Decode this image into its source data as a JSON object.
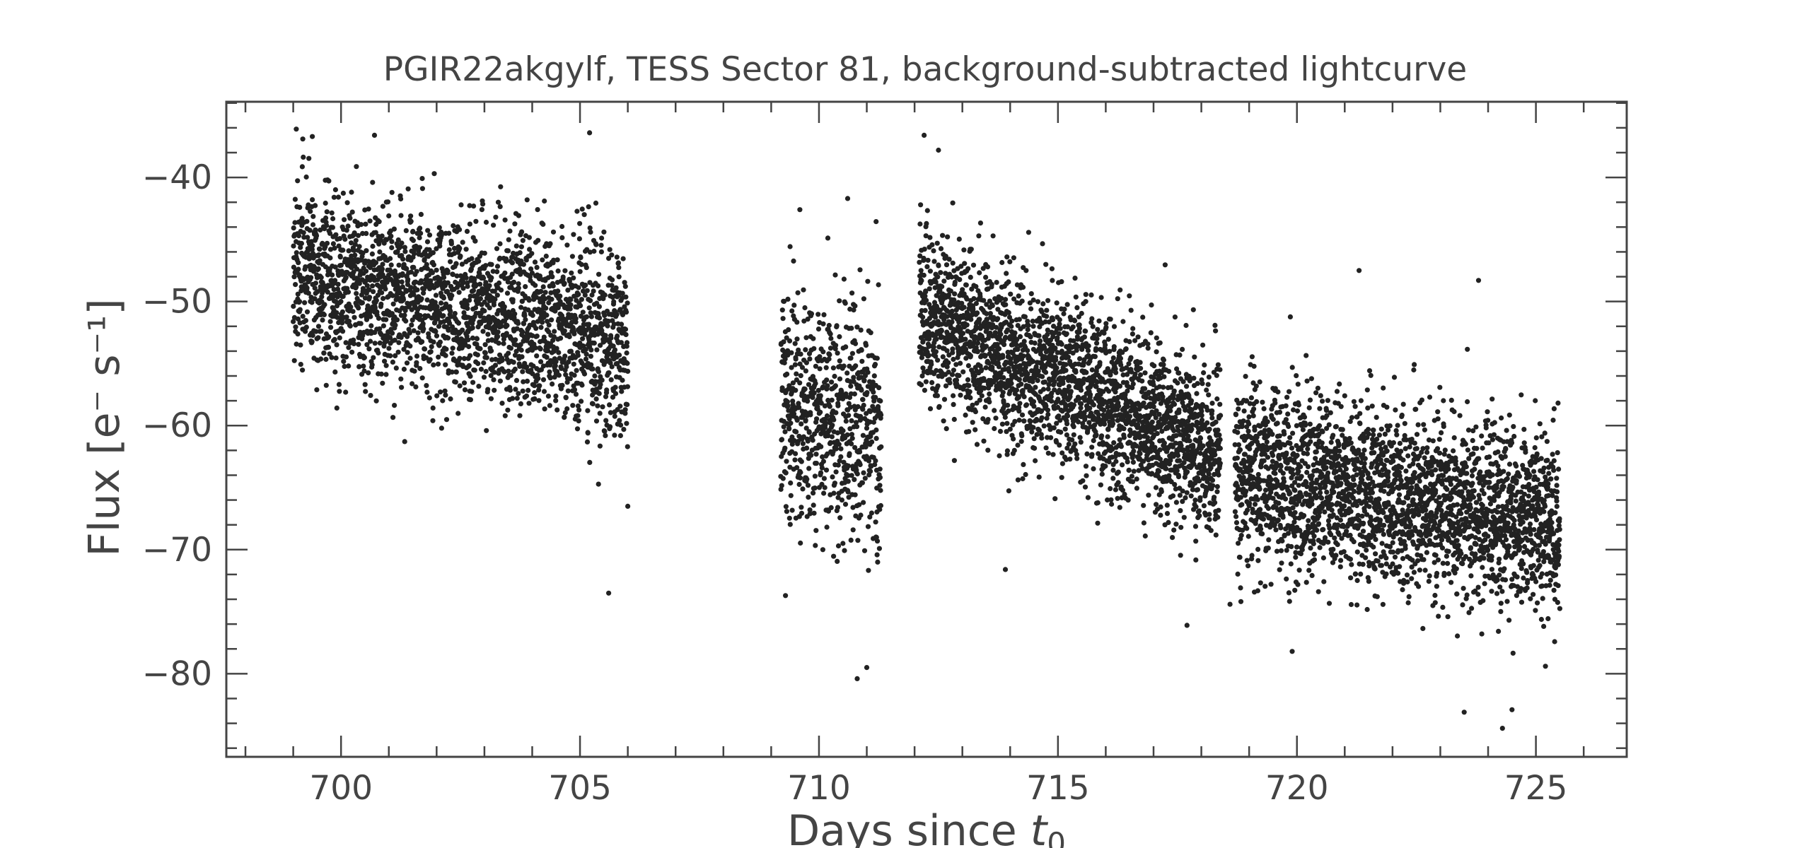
{
  "chart_data": {
    "type": "scatter",
    "title": "PGIR22akgylf, TESS Sector 81, background-subtracted lightcurve",
    "xlabel": "Days since t0",
    "xlabel_main": "Days since ",
    "xlabel_var": "t",
    "xlabel_sub": "0",
    "ylabel": "Flux [e⁻ s⁻¹]",
    "xlim": [
      697.6,
      726.9
    ],
    "ylim": [
      -86.7,
      -33.9
    ],
    "xticks": [
      700,
      705,
      710,
      715,
      720,
      725
    ],
    "xtick_labels": [
      "700",
      "705",
      "710",
      "715",
      "720",
      "725"
    ],
    "yticks": [
      -40,
      -50,
      -60,
      -70,
      -80
    ],
    "ytick_labels": [
      "−40",
      "−50",
      "−60",
      "−70",
      "−80"
    ],
    "grid": false,
    "legend": "none",
    "point_color": "#222222",
    "axis_color": "#444444",
    "segments": [
      {
        "x_start": 699.0,
        "x_end": 706.0,
        "y_start": -47.5,
        "y_end": -53.5,
        "scatter": 3.6,
        "n_points": 2400
      },
      {
        "x_start": 709.2,
        "x_end": 711.3,
        "y_start": -58.5,
        "y_end": -60.0,
        "scatter": 4.8,
        "n_points": 700
      },
      {
        "x_start": 712.1,
        "x_end": 718.4,
        "y_start": -51.0,
        "y_end": -62.5,
        "scatter": 3.4,
        "n_points": 2500
      },
      {
        "x_start": 718.7,
        "x_end": 725.5,
        "y_start": -63.5,
        "y_end": -68.0,
        "scatter": 3.6,
        "n_points": 2600
      }
    ],
    "outliers": [
      {
        "x": 699.2,
        "y": -36.9
      },
      {
        "x": 699.4,
        "y": -36.7
      },
      {
        "x": 700.7,
        "y": -36.6
      },
      {
        "x": 705.2,
        "y": -36.4
      },
      {
        "x": 705.6,
        "y": -73.5
      },
      {
        "x": 706.0,
        "y": -66.5
      },
      {
        "x": 709.3,
        "y": -73.7
      },
      {
        "x": 709.6,
        "y": -42.6
      },
      {
        "x": 710.6,
        "y": -41.7
      },
      {
        "x": 710.8,
        "y": -80.4
      },
      {
        "x": 711.0,
        "y": -79.5
      },
      {
        "x": 712.2,
        "y": -36.6
      },
      {
        "x": 712.5,
        "y": -37.8
      },
      {
        "x": 713.9,
        "y": -71.6
      },
      {
        "x": 717.7,
        "y": -76.1
      },
      {
        "x": 718.6,
        "y": -74.4
      },
      {
        "x": 719.9,
        "y": -78.2
      },
      {
        "x": 721.3,
        "y": -47.5
      },
      {
        "x": 723.5,
        "y": -83.1
      },
      {
        "x": 723.8,
        "y": -48.3
      },
      {
        "x": 724.3,
        "y": -84.4
      },
      {
        "x": 724.5,
        "y": -82.9
      },
      {
        "x": 725.2,
        "y": -79.4
      }
    ]
  }
}
